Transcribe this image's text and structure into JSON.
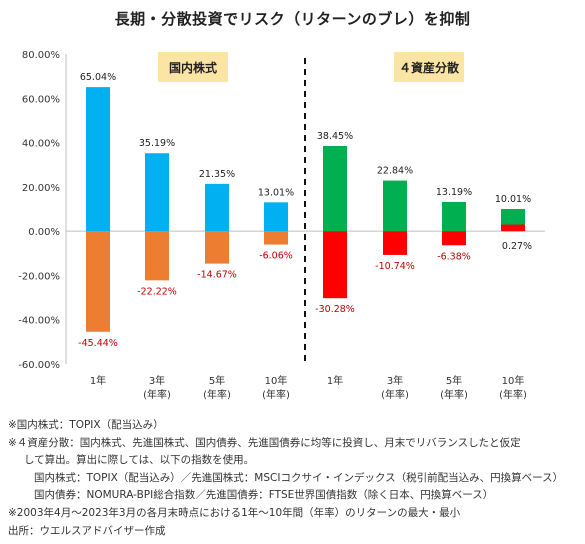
{
  "title": "長期・分散投資でリスク（リターンのブレ）を抑制",
  "chart_data": {
    "type": "bar",
    "title": "長期・分散投資でリスク（リターンのブレ）を抑制",
    "ylim": [
      -60,
      80
    ],
    "yticks": [
      "80.00%",
      "60.00%",
      "40.00%",
      "20.00%",
      "0.00%",
      "-20.00%",
      "-40.00%",
      "-60.00%"
    ],
    "yticks_values": [
      80,
      60,
      40,
      20,
      0,
      -20,
      -40,
      -60
    ],
    "grid": false,
    "groups": [
      {
        "label": "国内株式",
        "label_bg": "#fbe5a5",
        "max_color": "#00b0f0",
        "min_color": "#ed7d31",
        "categories": [
          [
            "1年"
          ],
          [
            "3年",
            "(年率)"
          ],
          [
            "5年",
            "(年率)"
          ],
          [
            "10年",
            "(年率)"
          ]
        ],
        "max": [
          65.04,
          35.19,
          21.35,
          13.01
        ],
        "min": [
          -45.44,
          -22.22,
          -14.67,
          -6.06
        ],
        "max_labels": [
          "65.04%",
          "35.19%",
          "21.35%",
          "13.01%"
        ],
        "min_labels": [
          "-45.44%",
          "-22.22%",
          "-14.67%",
          "-6.06%"
        ]
      },
      {
        "label": "４資産分散",
        "label_bg": "#fbe5a5",
        "max_color": "#00b050",
        "min_color": "#ff0000",
        "categories": [
          [
            "1年"
          ],
          [
            "3年",
            "(年率)"
          ],
          [
            "5年",
            "(年率)"
          ],
          [
            "10年",
            "(年率)"
          ]
        ],
        "max": [
          38.45,
          22.84,
          13.19,
          10.01
        ],
        "min": [
          -30.28,
          -10.74,
          -6.38,
          0.27
        ],
        "max_labels": [
          "38.45%",
          "22.84%",
          "13.19%",
          "10.01%"
        ],
        "min_labels": [
          "-30.28%",
          "-10.74%",
          "-6.38%",
          "0.27%"
        ]
      }
    ],
    "min_label_color": "#c00000",
    "max_label_color": "#222222"
  },
  "notes": {
    "line1": "※国内株式：TOPIX（配当込み）",
    "line2": "※４資産分散：国内株式、先進国株式、国内債券、先進国債券に均等に投資し、月末でリバランスしたと仮定",
    "line3": "して算出。算出に際しては、以下の指数を使用。",
    "line4": "国内株式：TOPIX（配当込み）／先進国株式：MSCIコクサイ・インデックス（税引前配当込み、円換算ベース）",
    "line5": "国内債券：NOMURA-BPI総合指数／先進国債券：FTSE世界国債指数（除く日本、円換算ベース）",
    "line6": "※2003年4月～2023年3月の各月末時点における1年～10年間（年率）のリターンの最大・最小",
    "line7": "出所：ウエルスアドバイザー作成"
  }
}
